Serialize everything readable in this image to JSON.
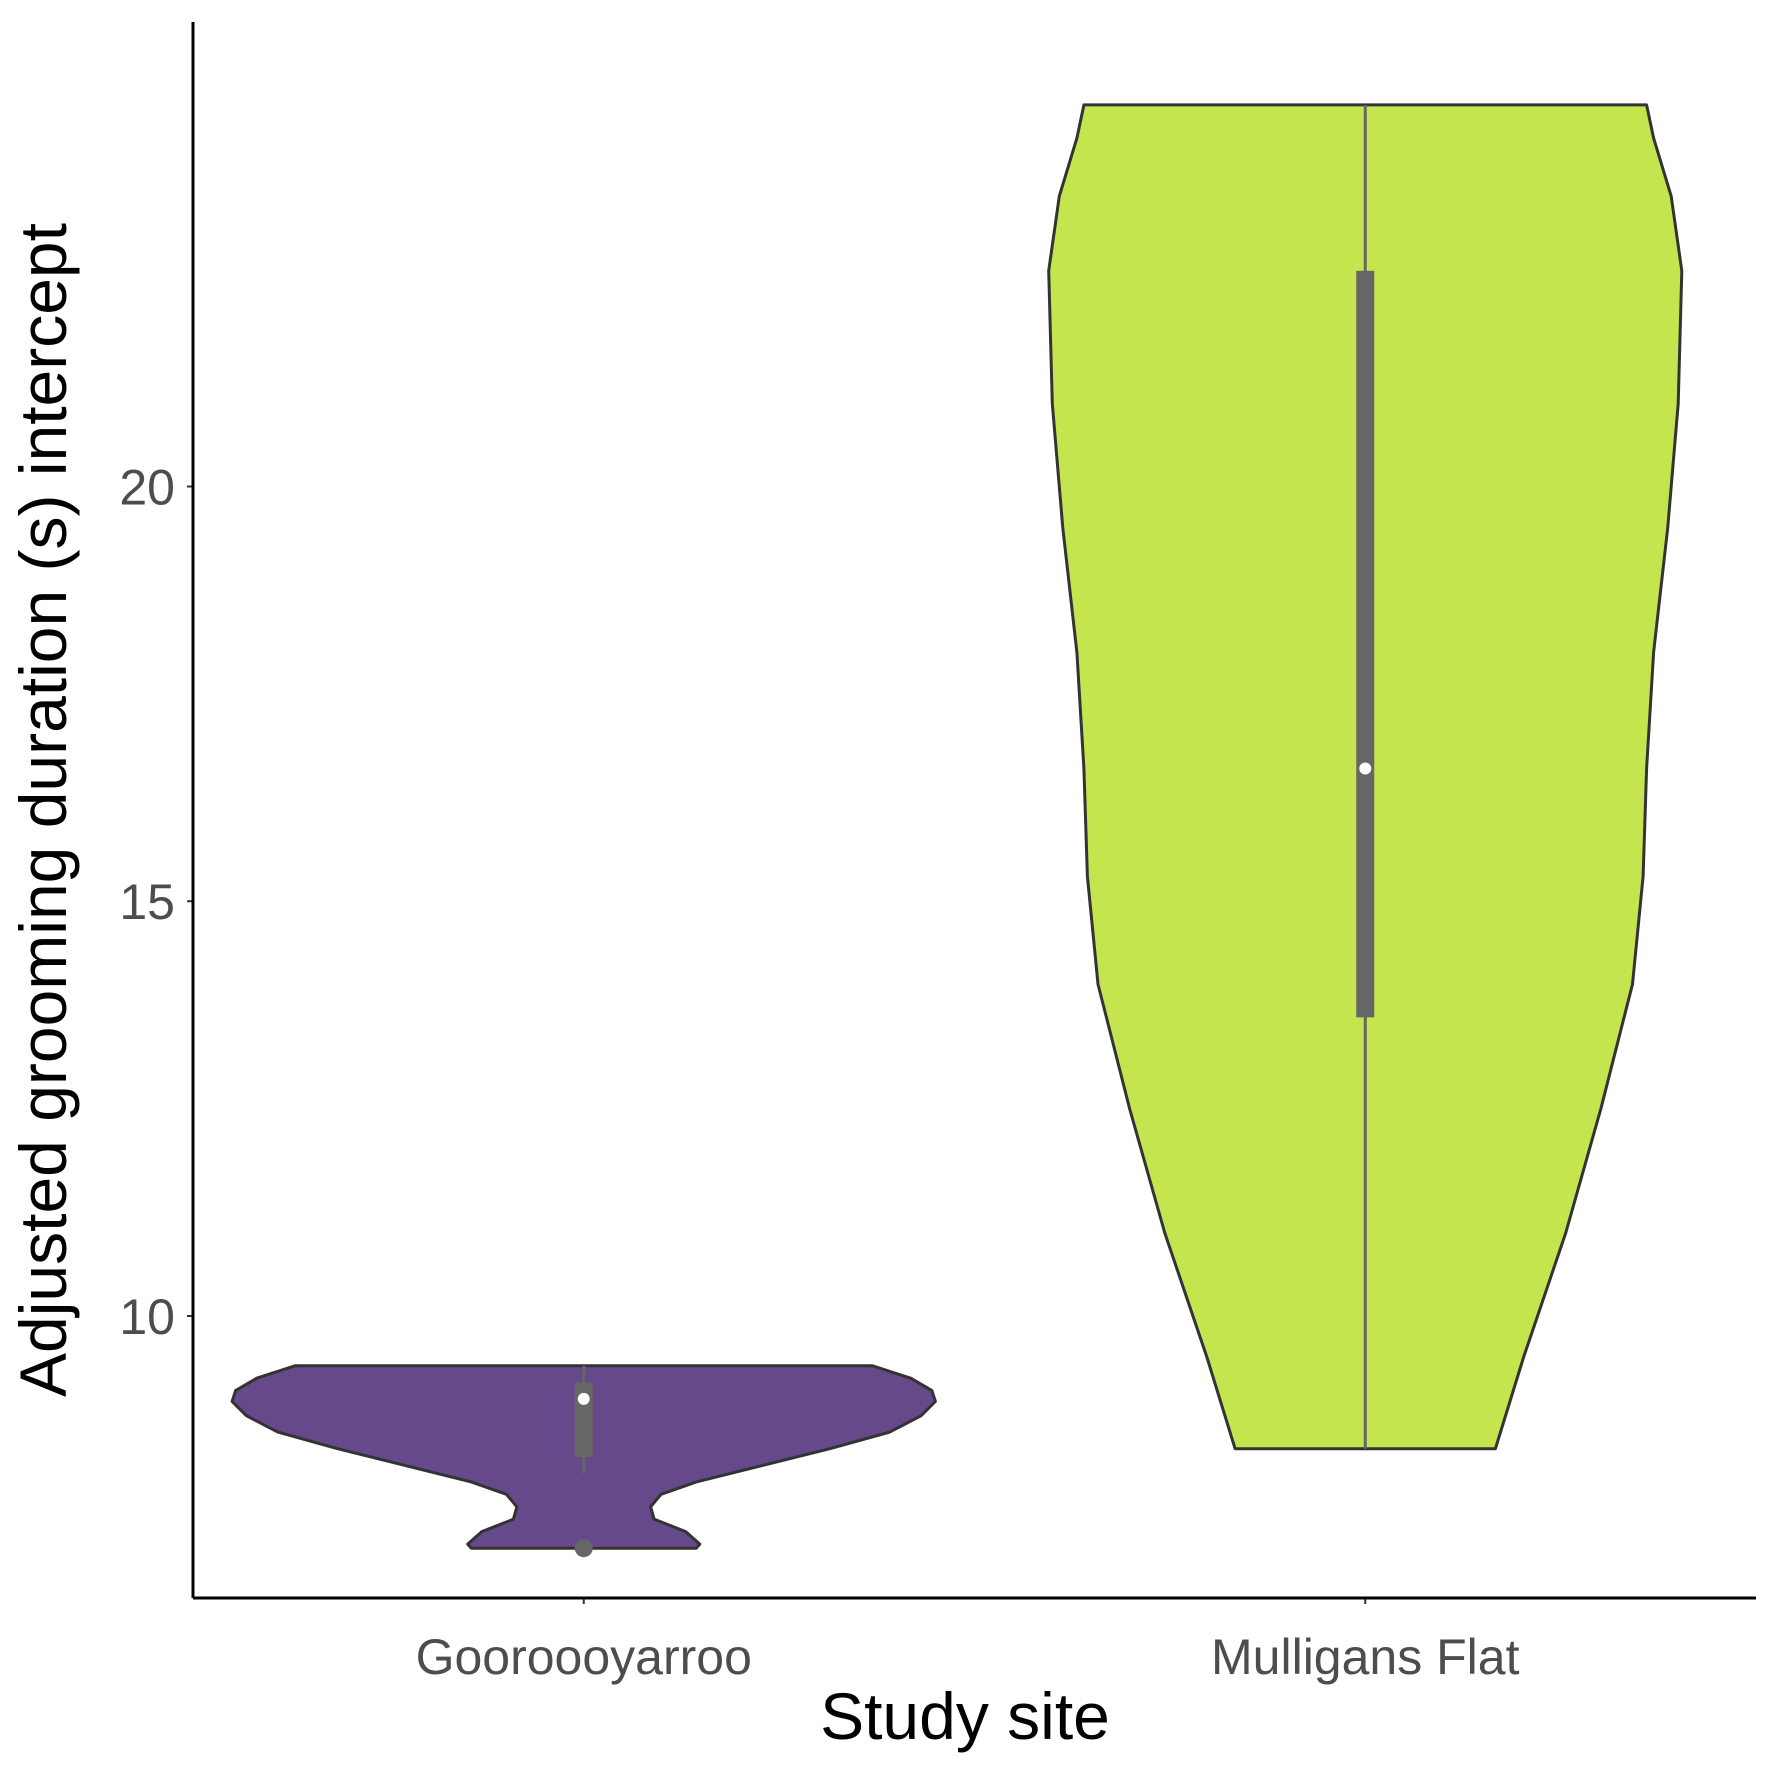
{
  "chart_data": {
    "type": "violin",
    "xlabel": "Study site",
    "ylabel": "Adjusted grooming duration (s) intercept",
    "yticks": [
      10,
      15,
      20
    ],
    "ylim": [
      6.6,
      25.6
    ],
    "categories": [
      "Gooroooyarroo",
      "Mulligans Flat"
    ],
    "groups": [
      {
        "category": "Gooroooyarroo",
        "color": "#66498a",
        "min": 7.2,
        "max": 9.4,
        "q1": 8.3,
        "median": 9.0,
        "q3": 9.2,
        "whisker_low": 8.1,
        "whisker_high": 9.4,
        "outliers": [
          7.2
        ],
        "density": [
          [
            7.2,
            0.32
          ],
          [
            7.25,
            0.33
          ],
          [
            7.4,
            0.29
          ],
          [
            7.55,
            0.2
          ],
          [
            7.7,
            0.19
          ],
          [
            7.85,
            0.22
          ],
          [
            8.0,
            0.32
          ],
          [
            8.2,
            0.51
          ],
          [
            8.4,
            0.7
          ],
          [
            8.6,
            0.87
          ],
          [
            8.8,
            0.96
          ],
          [
            8.97,
            1.0
          ],
          [
            9.1,
            0.99
          ],
          [
            9.25,
            0.93
          ],
          [
            9.4,
            0.82
          ]
        ]
      },
      {
        "category": "Mulligans Flat",
        "color": "#c5e54e",
        "min": 8.4,
        "max": 24.6,
        "q1": 13.6,
        "median": 16.6,
        "q3": 22.6,
        "whisker_low": 8.4,
        "whisker_high": 24.6,
        "outliers": [],
        "density": [
          [
            8.4,
            0.37
          ],
          [
            9.5,
            0.45
          ],
          [
            11.0,
            0.57
          ],
          [
            12.5,
            0.67
          ],
          [
            14.0,
            0.76
          ],
          [
            15.3,
            0.79
          ],
          [
            16.6,
            0.8
          ],
          [
            18.0,
            0.82
          ],
          [
            19.5,
            0.86
          ],
          [
            21.0,
            0.89
          ],
          [
            22.6,
            0.9
          ],
          [
            23.5,
            0.87
          ],
          [
            24.2,
            0.82
          ],
          [
            24.6,
            0.8
          ]
        ]
      }
    ]
  }
}
